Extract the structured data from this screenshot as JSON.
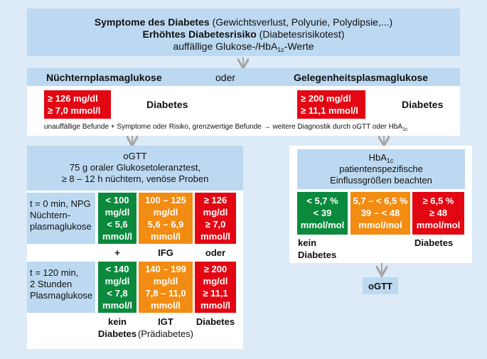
{
  "top": {
    "line1_bold": "Symptome des Diabetes",
    "line1_rest": " (Gewichtsverlust, Polyurie, Polydipsie,...)",
    "line2_bold": "Erhöhtes Diabetesrisiko",
    "line2_rest": " (Diabetesrisikotest)",
    "line3_pre": "auffällige Glukose-/HbA",
    "line3_sub": "1c",
    "line3_post": "-Werte"
  },
  "middle": {
    "left_heading": "Nüchternplasmaglukose",
    "or_text": "oder",
    "right_heading": "Gelegenheitsplasmaglukose",
    "left_box": [
      "≥ 126 mg/dl",
      "≥ 7,0 mmol/l"
    ],
    "left_result": "Diabetes",
    "right_box": [
      "≥ 200 mg/dl",
      "≥ 11,1 mmol/l"
    ],
    "right_result": "Diabetes",
    "note_pre": "unauffällige Befunde + Symptome oder Risiko, grenzwertige Befunde → weitere Diagnostik durch oGTT oder HbA",
    "note_sub": "1c"
  },
  "ogtt": {
    "title": "oGTT",
    "line2": "75 g oraler Glukosetoleranztest,",
    "line3": "≥ 8 – 12 h nüchtern, venöse Proben",
    "row1_label": [
      "t = 0 min, NPG",
      "Nüchtern-",
      "plasmaglukose"
    ],
    "row1_green": [
      "< 100",
      "mg/dl",
      "< 5,6",
      "mmol/l"
    ],
    "row1_orange": [
      "100 – 125",
      "mg/dl",
      "5,6 – 6,9",
      "mmol/l"
    ],
    "row1_red": [
      "≥ 126",
      "mg/dl",
      "≥ 7,0",
      "mmol/l"
    ],
    "mid_labels": [
      "+",
      "IFG",
      "oder"
    ],
    "row2_label": [
      "t = 120 min,",
      "2 Stunden",
      "Plasmaglukose"
    ],
    "row2_green": [
      "< 140",
      "mg/dl",
      "< 7,8",
      "mmol/l"
    ],
    "row2_orange": [
      "140 – 199",
      "mg/dl",
      "7,8 – 11,0",
      "mmol/l"
    ],
    "row2_red": [
      "≥ 200",
      "mg/dl",
      "≥ 11,1",
      "mmol/l"
    ],
    "bottom_green": [
      "kein",
      "Diabetes"
    ],
    "bottom_orange": [
      "IGT",
      "(Prädiabetes)"
    ],
    "bottom_red": "Diabetes"
  },
  "hba1c": {
    "title_pre": "HbA",
    "title_sub": "1c",
    "line2": "patientenspezifische",
    "line3": "Einflussgrößen beachten",
    "green": [
      "< 5,7 %",
      "< 39",
      "mmol/mol"
    ],
    "orange": [
      "5,7 – < 6,5 %",
      "39 – < 48",
      "mmol/mol"
    ],
    "red": [
      "≥ 6,5 %",
      "≥ 48",
      "mmol/mol"
    ],
    "green_label": [
      "kein",
      "Diabetes"
    ],
    "red_label": "Diabetes",
    "ogtt_box": "oGTT"
  },
  "colors": {
    "background": "#dcebf7",
    "panel_blue": "#bcd9f1",
    "red": "#e30613",
    "green": "#0b8a3e",
    "orange": "#f28c12",
    "arrow": "#a6a6a6"
  }
}
